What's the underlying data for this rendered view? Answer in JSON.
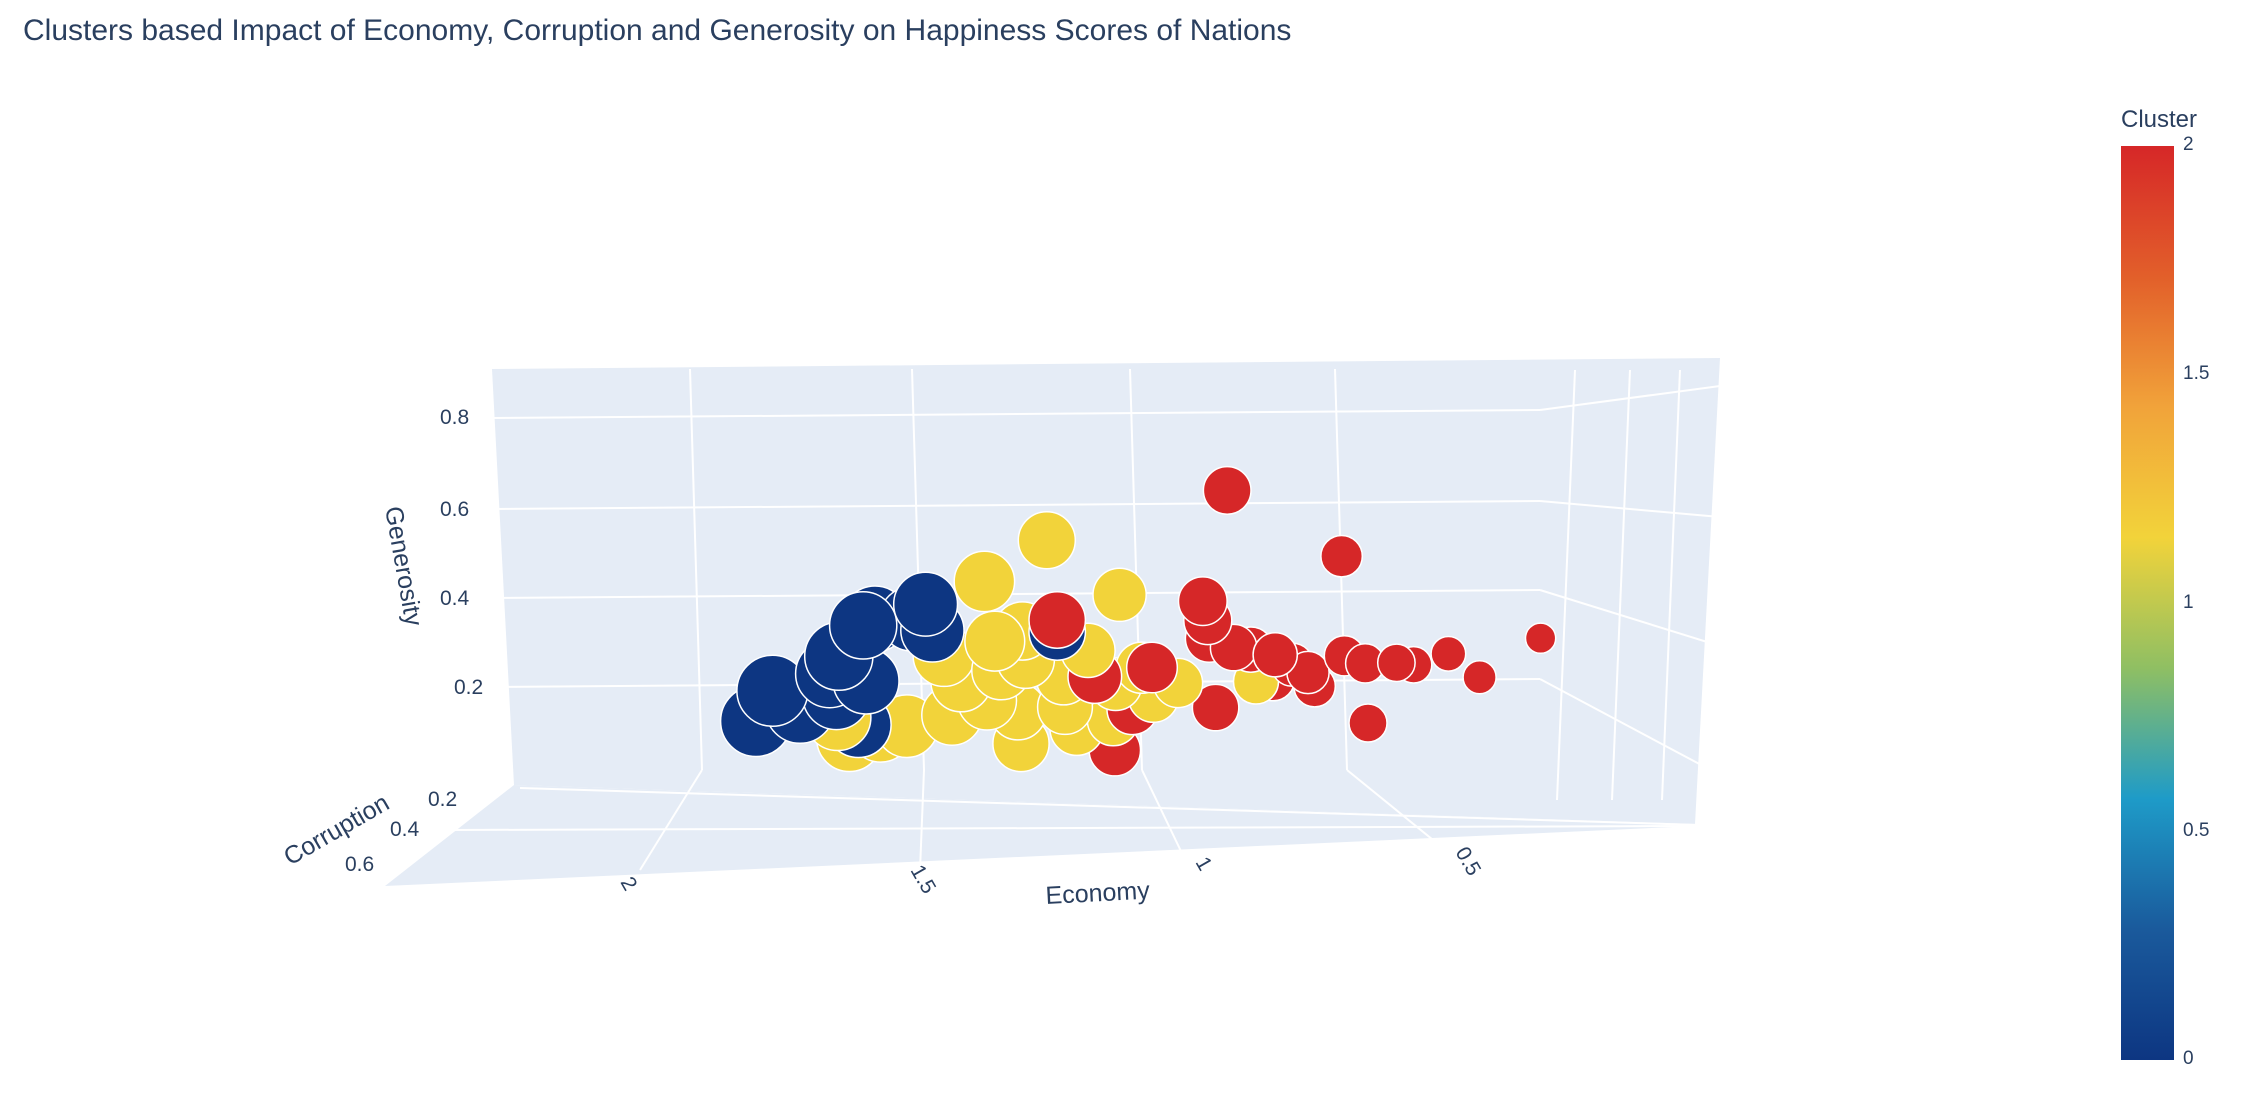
{
  "chart_data": {
    "type": "scatter",
    "title": "Clusters based Impact of Economy, Corruption and Generosity on Happiness Scores of Nations",
    "axes": {
      "x": {
        "label": "Economy",
        "ticks": [
          "2",
          "1.5",
          "1",
          "0.5"
        ],
        "reversed": true
      },
      "y": {
        "label": "Corruption",
        "ticks": [
          "0.2",
          "0.4",
          "0.6"
        ]
      },
      "z": {
        "label": "Generosity",
        "ticks": [
          "0.8",
          "0.6",
          "0.4",
          "0.2"
        ]
      }
    },
    "colorbar": {
      "title": "Cluster",
      "ticks": [
        "2",
        "1.5",
        "1",
        "0.5",
        "0"
      ],
      "colors": [
        "#d62728",
        "#e25f2a",
        "#f1a33a",
        "#f2d33a",
        "#8fbf63",
        "#1e9bc8",
        "#1a5a9c",
        "#0d3682"
      ]
    },
    "series": [
      {
        "cluster": 0,
        "color": "#0d3682",
        "points": [
          {
            "economy": 1.68,
            "corruption": 0.3,
            "generosity": 0.22
          },
          {
            "economy": 1.67,
            "corruption": 0.42,
            "generosity": 0.18
          },
          {
            "economy": 1.62,
            "corruption": 0.32,
            "generosity": 0.18
          },
          {
            "economy": 1.58,
            "corruption": 0.22,
            "generosity": 0.28
          },
          {
            "economy": 1.54,
            "corruption": 0.2,
            "generosity": 0.35
          },
          {
            "economy": 1.5,
            "corruption": 0.25,
            "generosity": 0.38
          },
          {
            "economy": 1.44,
            "corruption": 0.22,
            "generosity": 0.37
          },
          {
            "economy": 1.42,
            "corruption": 0.2,
            "generosity": 0.4
          },
          {
            "economy": 1.4,
            "corruption": 0.22,
            "generosity": 0.34
          },
          {
            "economy": 1.57,
            "corruption": 0.3,
            "generosity": 0.26
          },
          {
            "economy": 1.55,
            "corruption": 0.32,
            "generosity": 0.21
          },
          {
            "economy": 1.5,
            "corruption": 0.3,
            "generosity": 0.24
          },
          {
            "economy": 1.48,
            "corruption": 0.4,
            "generosity": 0.16
          },
          {
            "economy": 1.16,
            "corruption": 0.22,
            "generosity": 0.33
          }
        ]
      },
      {
        "cluster": 1,
        "color": "#f2d33a",
        "points": [
          {
            "economy": 1.52,
            "corruption": 0.4,
            "generosity": 0.18
          },
          {
            "economy": 1.48,
            "corruption": 0.45,
            "generosity": 0.14
          },
          {
            "economy": 1.42,
            "corruption": 0.45,
            "generosity": 0.16
          },
          {
            "economy": 1.38,
            "corruption": 0.42,
            "generosity": 0.16
          },
          {
            "economy": 1.35,
            "corruption": 0.3,
            "generosity": 0.3
          },
          {
            "economy": 1.31,
            "corruption": 0.32,
            "generosity": 0.24
          },
          {
            "economy": 1.3,
            "corruption": 0.4,
            "generosity": 0.18
          },
          {
            "economy": 1.25,
            "corruption": 0.35,
            "generosity": 0.2
          },
          {
            "economy": 1.24,
            "corruption": 0.3,
            "generosity": 0.26
          },
          {
            "economy": 1.2,
            "corruption": 0.28,
            "generosity": 0.28
          },
          {
            "economy": 1.18,
            "corruption": 0.38,
            "generosity": 0.18
          },
          {
            "economy": 1.15,
            "corruption": 0.45,
            "generosity": 0.12
          },
          {
            "economy": 1.12,
            "corruption": 0.3,
            "generosity": 0.24
          },
          {
            "economy": 1.1,
            "corruption": 0.35,
            "generosity": 0.18
          },
          {
            "economy": 1.08,
            "corruption": 0.28,
            "generosity": 0.3
          },
          {
            "economy": 1.06,
            "corruption": 0.4,
            "generosity": 0.14
          },
          {
            "economy": 1.02,
            "corruption": 0.3,
            "generosity": 0.22
          },
          {
            "economy": 0.99,
            "corruption": 0.4,
            "generosity": 0.16
          },
          {
            "economy": 0.97,
            "corruption": 0.3,
            "generosity": 0.26
          },
          {
            "economy": 0.93,
            "corruption": 0.35,
            "generosity": 0.2
          },
          {
            "economy": 1.18,
            "corruption": 0.22,
            "generosity": 0.56
          },
          {
            "economy": 1.3,
            "corruption": 0.22,
            "generosity": 0.46
          },
          {
            "economy": 1.04,
            "corruption": 0.22,
            "generosity": 0.42
          },
          {
            "economy": 0.9,
            "corruption": 0.3,
            "generosity": 0.22
          },
          {
            "economy": 0.75,
            "corruption": 0.3,
            "generosity": 0.22
          },
          {
            "economy": 1.28,
            "corruption": 0.22,
            "generosity": 0.31
          },
          {
            "economy": 1.22,
            "corruption": 0.24,
            "generosity": 0.34
          }
        ]
      },
      {
        "cluster": 2,
        "color": "#d62728",
        "points": [
          {
            "economy": 0.84,
            "corruption": 0.2,
            "generosity": 0.67
          },
          {
            "economy": 0.62,
            "corruption": 0.2,
            "generosity": 0.5
          },
          {
            "economy": 0.88,
            "corruption": 0.22,
            "generosity": 0.4
          },
          {
            "economy": 0.86,
            "corruption": 0.25,
            "generosity": 0.36
          },
          {
            "economy": 0.84,
            "corruption": 0.3,
            "generosity": 0.33
          },
          {
            "economy": 0.8,
            "corruption": 0.28,
            "generosity": 0.3
          },
          {
            "economy": 0.76,
            "corruption": 0.3,
            "generosity": 0.3
          },
          {
            "economy": 0.72,
            "corruption": 0.28,
            "generosity": 0.28
          },
          {
            "economy": 0.7,
            "corruption": 0.35,
            "generosity": 0.24
          },
          {
            "economy": 0.68,
            "corruption": 0.3,
            "generosity": 0.26
          },
          {
            "economy": 0.65,
            "corruption": 0.3,
            "generosity": 0.24
          },
          {
            "economy": 0.62,
            "corruption": 0.35,
            "generosity": 0.22
          },
          {
            "economy": 0.58,
            "corruption": 0.3,
            "generosity": 0.28
          },
          {
            "economy": 0.54,
            "corruption": 0.3,
            "generosity": 0.26
          },
          {
            "economy": 0.5,
            "corruption": 0.4,
            "generosity": 0.14
          },
          {
            "economy": 0.48,
            "corruption": 0.3,
            "generosity": 0.26
          },
          {
            "economy": 0.44,
            "corruption": 0.32,
            "generosity": 0.26
          },
          {
            "economy": 0.38,
            "corruption": 0.3,
            "generosity": 0.28
          },
          {
            "economy": 0.32,
            "corruption": 0.3,
            "generosity": 0.22
          },
          {
            "economy": 0.22,
            "corruption": 0.25,
            "generosity": 0.3
          },
          {
            "economy": 0.95,
            "corruption": 0.3,
            "generosity": 0.26
          },
          {
            "economy": 0.96,
            "corruption": 0.38,
            "generosity": 0.18
          },
          {
            "economy": 0.98,
            "corruption": 0.42,
            "generosity": 0.09
          },
          {
            "economy": 1.16,
            "corruption": 0.22,
            "generosity": 0.36
          },
          {
            "economy": 1.06,
            "corruption": 0.3,
            "generosity": 0.24
          },
          {
            "economy": 0.8,
            "corruption": 0.38,
            "generosity": 0.18
          }
        ]
      }
    ]
  }
}
